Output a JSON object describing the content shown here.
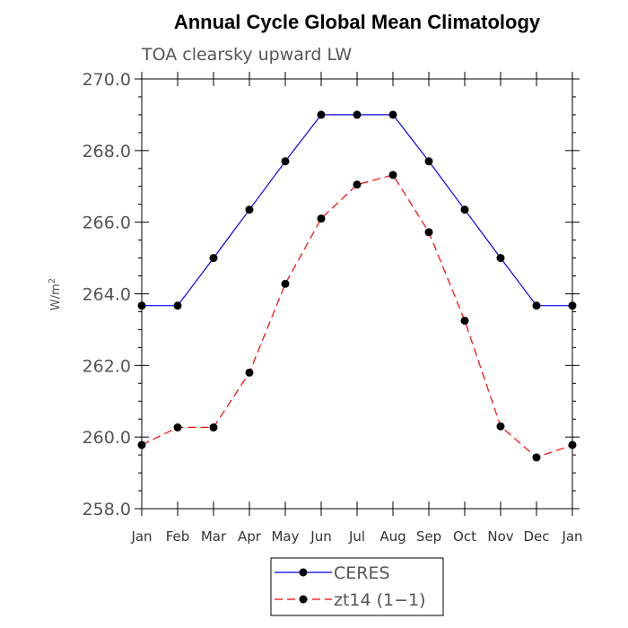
{
  "chart_data": {
    "type": "line",
    "title": "Annual Cycle Global Mean Climatology",
    "subtitle": "TOA clearsky upward LW",
    "ylabel": "W/m",
    "ylabel_sup": "2",
    "ylim": [
      258.0,
      270.0
    ],
    "yticks": [
      "258.0",
      "260.0",
      "262.0",
      "264.0",
      "266.0",
      "268.0",
      "270.0"
    ],
    "ytick_values": [
      258,
      260,
      262,
      264,
      266,
      268,
      270
    ],
    "categories": [
      "Jan",
      "Feb",
      "Mar",
      "Apr",
      "May",
      "Jun",
      "Jul",
      "Aug",
      "Sep",
      "Oct",
      "Nov",
      "Dec",
      "Jan"
    ],
    "series": [
      {
        "name": "CERES",
        "color": "#0000ff",
        "style": "solid",
        "values": [
          263.67,
          263.67,
          265.0,
          266.35,
          267.7,
          269.0,
          269.0,
          269.0,
          267.7,
          266.35,
          265.0,
          263.67,
          263.67
        ]
      },
      {
        "name": "zt14 (1−1)",
        "color": "#ff0000",
        "style": "dashed",
        "values": [
          259.78,
          260.27,
          260.27,
          261.8,
          264.28,
          266.1,
          267.05,
          267.32,
          265.72,
          263.25,
          260.3,
          259.43,
          259.78
        ]
      }
    ],
    "grid": false,
    "legend_position": "bottom-center"
  }
}
